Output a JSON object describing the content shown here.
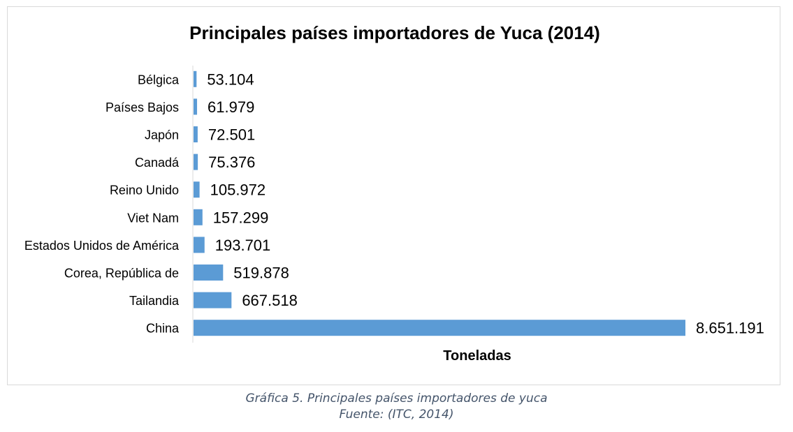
{
  "chart_data": {
    "type": "bar",
    "orientation": "horizontal",
    "title": "Principales países importadores de Yuca (2014)",
    "xlabel": "Toneladas",
    "ylabel": "",
    "categories": [
      "Bélgica",
      "Países Bajos",
      "Japón",
      "Canadá",
      "Reino Unido",
      "Viet Nam",
      "Estados Unidos de América",
      "Corea, República de",
      "Tailandia",
      "China"
    ],
    "values": [
      53104,
      61979,
      72501,
      75376,
      105972,
      157299,
      193701,
      519878,
      667518,
      8651191
    ],
    "value_labels": [
      "53.104",
      "61.979",
      "72.501",
      "75.376",
      "105.972",
      "157.299",
      "193.701",
      "519.878",
      "667.518",
      "8.651.191"
    ],
    "bar_color": "#5b9bd5",
    "grid": false,
    "legend": "none"
  },
  "caption": {
    "line1": "Gráfica 5. Principales países importadores de yuca",
    "line2": "Fuente: (ITC, 2014)"
  }
}
